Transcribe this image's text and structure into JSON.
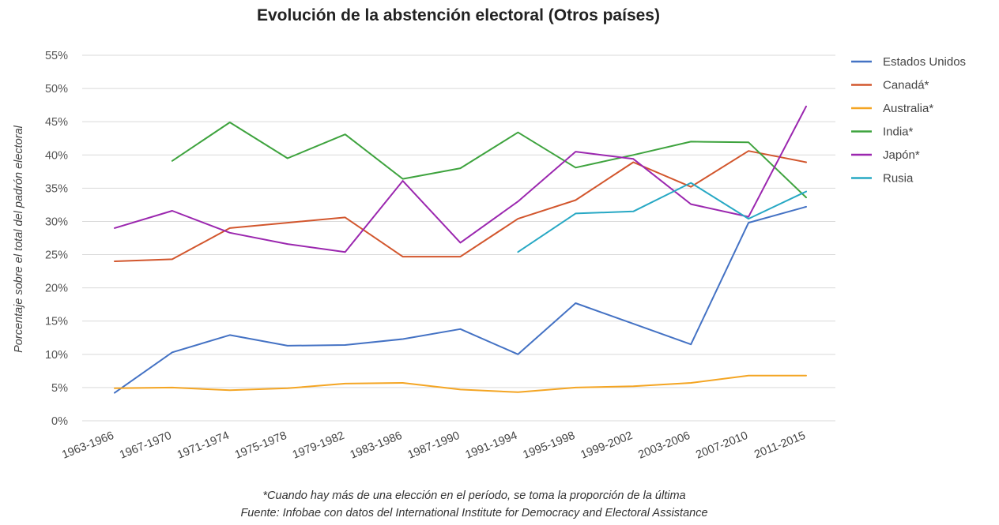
{
  "chart_data": {
    "type": "line",
    "title": "Evolución de la abstención electoral (Otros países)",
    "ylabel": "Porcentaje sobre el total del padrón electoral",
    "xlabel": "",
    "ylim": [
      0,
      55
    ],
    "y_ticks": [
      "0%",
      "5%",
      "10%",
      "15%",
      "20%",
      "25%",
      "30%",
      "35%",
      "40%",
      "45%",
      "50%",
      "55%"
    ],
    "categories": [
      "1963-1966",
      "1967-1970",
      "1971-1974",
      "1975-1978",
      "1979-1982",
      "1983-1986",
      "1987-1990",
      "1991-1994",
      "1995-1998",
      "1999-2002",
      "2003-2006",
      "2007-2010",
      "2011-2015"
    ],
    "grid": true,
    "legend_position": "right",
    "series": [
      {
        "name": "Estados Unidos",
        "color": "#4472C4",
        "values": [
          4.2,
          10.3,
          12.9,
          11.3,
          11.4,
          12.3,
          13.8,
          10.0,
          17.7,
          14.6,
          11.5,
          29.8,
          32.2
        ]
      },
      {
        "name": "Canadá*",
        "color": "#D2562D",
        "values": [
          24.0,
          24.3,
          29.0,
          29.8,
          30.6,
          24.7,
          24.7,
          30.4,
          33.2,
          38.9,
          35.2,
          40.6,
          38.9
        ]
      },
      {
        "name": "Australia*",
        "color": "#F4A523",
        "values": [
          4.9,
          5.0,
          4.6,
          4.9,
          5.6,
          5.7,
          4.7,
          4.3,
          5.0,
          5.2,
          5.7,
          6.8,
          6.8
        ]
      },
      {
        "name": "India*",
        "color": "#3EA33E",
        "values": [
          null,
          39.1,
          44.9,
          39.5,
          43.1,
          36.4,
          38.0,
          43.4,
          38.1,
          40.0,
          42.0,
          41.9,
          33.6
        ]
      },
      {
        "name": "Japón*",
        "color": "#9B27AF",
        "values": [
          29.0,
          31.6,
          28.3,
          26.6,
          25.4,
          36.1,
          26.8,
          33.0,
          40.5,
          39.4,
          32.6,
          30.7,
          47.3
        ]
      },
      {
        "name": "Rusia",
        "color": "#27A8C4",
        "values": [
          null,
          null,
          null,
          null,
          null,
          null,
          null,
          25.4,
          31.2,
          31.5,
          35.8,
          30.4,
          34.5
        ]
      }
    ]
  },
  "notes": {
    "line1": "*Cuando hay más de una elección en el período, se toma la proporción de la última",
    "line2": "Fuente: Infobae con datos del  International Institute for Democracy and Electoral Assistance"
  }
}
